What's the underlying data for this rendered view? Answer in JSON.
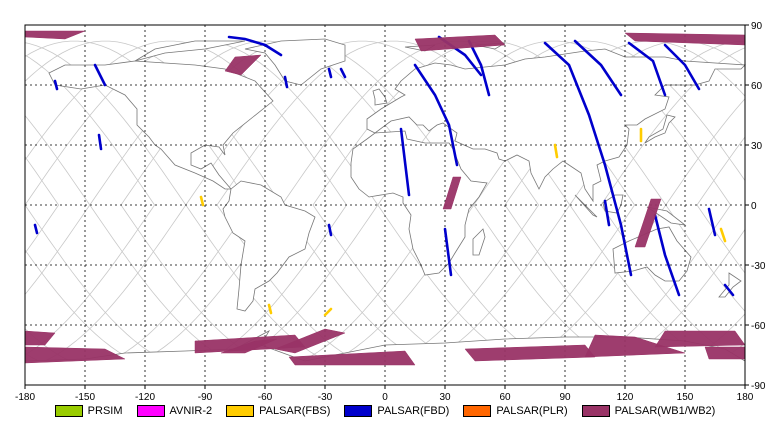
{
  "chart_data": {
    "type": "map",
    "projection": "equirectangular",
    "xlim": [
      -180,
      180
    ],
    "ylim": [
      -90,
      90
    ],
    "x_ticks": [
      "-180",
      "-150",
      "-120",
      "-90",
      "-60",
      "-30",
      "0",
      "30",
      "60",
      "90",
      "120",
      "150",
      "180"
    ],
    "y_ticks": [
      "90",
      "60",
      "30",
      "0",
      "-30",
      "-60",
      "-90"
    ],
    "grid": true,
    "legend_position": "bottom",
    "legend": [
      {
        "label": "PRSIM",
        "color": "#99cc00"
      },
      {
        "label": "AVNIR-2",
        "color": "#ff00ff"
      },
      {
        "label": "PALSAR(FBS)",
        "color": "#ffcc00"
      },
      {
        "label": "PALSAR(FBD)",
        "color": "#0000cc"
      },
      {
        "label": "PALSAR(PLR)",
        "color": "#ff6600"
      },
      {
        "label": "PALSAR(WB1/WB2)",
        "color": "#993366"
      }
    ],
    "series": [
      {
        "name": "PALSAR(FBD)",
        "color": "#0000cc",
        "type": "track",
        "points": [
          [
            -78,
            84
          ],
          [
            -70,
            83
          ],
          [
            -60,
            80
          ],
          [
            -52,
            75
          ]
        ]
      },
      {
        "name": "PALSAR(FBD)",
        "color": "#0000cc",
        "type": "track",
        "points": [
          [
            -145,
            70
          ],
          [
            -140,
            60
          ]
        ]
      },
      {
        "name": "PALSAR(FBD)",
        "color": "#0000cc",
        "type": "track",
        "points": [
          [
            -143,
            35
          ],
          [
            -142,
            28
          ]
        ]
      },
      {
        "name": "PALSAR(FBD)",
        "color": "#0000cc",
        "type": "track",
        "points": [
          [
            -165,
            62
          ],
          [
            -164,
            58
          ]
        ]
      },
      {
        "name": "PALSAR(FBD)",
        "color": "#0000cc",
        "type": "track",
        "points": [
          [
            -50,
            64
          ],
          [
            -49,
            59
          ]
        ]
      },
      {
        "name": "PALSAR(FBD)",
        "color": "#0000cc",
        "type": "track",
        "points": [
          [
            -22,
            68
          ],
          [
            -20,
            64
          ]
        ]
      },
      {
        "name": "PALSAR(FBD)",
        "color": "#0000cc",
        "type": "track",
        "points": [
          [
            -28,
            68
          ],
          [
            -27,
            64
          ]
        ]
      },
      {
        "name": "PALSAR(FBD)",
        "color": "#0000cc",
        "type": "track",
        "points": [
          [
            15,
            70
          ],
          [
            25,
            55
          ],
          [
            32,
            40
          ],
          [
            36,
            20
          ]
        ]
      },
      {
        "name": "PALSAR(FBD)",
        "color": "#0000cc",
        "type": "track",
        "points": [
          [
            8,
            38
          ],
          [
            12,
            5
          ]
        ]
      },
      {
        "name": "PALSAR(FBD)",
        "color": "#0000cc",
        "type": "track",
        "points": [
          [
            30,
            -12
          ],
          [
            33,
            -35
          ]
        ]
      },
      {
        "name": "PALSAR(FBD)",
        "color": "#0000cc",
        "type": "track",
        "points": [
          [
            42,
            82
          ],
          [
            48,
            70
          ],
          [
            52,
            55
          ]
        ]
      },
      {
        "name": "PALSAR(FBD)",
        "color": "#0000cc",
        "type": "track",
        "points": [
          [
            27,
            84
          ],
          [
            40,
            75
          ],
          [
            48,
            65
          ]
        ]
      },
      {
        "name": "PALSAR(FBD)",
        "color": "#0000cc",
        "type": "track",
        "points": [
          [
            80,
            81
          ],
          [
            92,
            70
          ],
          [
            102,
            45
          ],
          [
            110,
            20
          ],
          [
            118,
            -10
          ],
          [
            123,
            -35
          ]
        ]
      },
      {
        "name": "PALSAR(FBD)",
        "color": "#0000cc",
        "type": "track",
        "points": [
          [
            95,
            82
          ],
          [
            108,
            70
          ],
          [
            118,
            55
          ]
        ]
      },
      {
        "name": "PALSAR(FBD)",
        "color": "#0000cc",
        "type": "track",
        "points": [
          [
            122,
            81
          ],
          [
            134,
            72
          ],
          [
            140,
            55
          ]
        ]
      },
      {
        "name": "PALSAR(FBD)",
        "color": "#0000cc",
        "type": "track",
        "points": [
          [
            140,
            80
          ],
          [
            150,
            70
          ],
          [
            157,
            58
          ]
        ]
      },
      {
        "name": "PALSAR(FBD)",
        "color": "#0000cc",
        "type": "track",
        "points": [
          [
            135,
            -5
          ],
          [
            140,
            -25
          ],
          [
            147,
            -45
          ]
        ]
      },
      {
        "name": "PALSAR(FBD)",
        "color": "#0000cc",
        "type": "track",
        "points": [
          [
            110,
            2
          ],
          [
            112,
            -10
          ]
        ]
      },
      {
        "name": "PALSAR(FBD)",
        "color": "#0000cc",
        "type": "track",
        "points": [
          [
            162,
            -2
          ],
          [
            165,
            -15
          ]
        ]
      },
      {
        "name": "PALSAR(FBD)",
        "color": "#0000cc",
        "type": "track",
        "points": [
          [
            170,
            -40
          ],
          [
            174,
            -45
          ]
        ]
      },
      {
        "name": "PALSAR(FBD)",
        "color": "#0000cc",
        "type": "track",
        "points": [
          [
            -28,
            -10
          ],
          [
            -27,
            -15
          ]
        ]
      },
      {
        "name": "PALSAR(FBD)",
        "color": "#0000cc",
        "type": "track",
        "points": [
          [
            -175,
            -10
          ],
          [
            -174,
            -14
          ]
        ]
      },
      {
        "name": "PALSAR(FBS)",
        "color": "#ffcc00",
        "type": "track",
        "points": [
          [
            -92,
            4
          ],
          [
            -91,
            0
          ]
        ]
      },
      {
        "name": "PALSAR(FBS)",
        "color": "#ffcc00",
        "type": "track",
        "points": [
          [
            -58,
            -50
          ],
          [
            -57,
            -54
          ]
        ]
      },
      {
        "name": "PALSAR(FBS)",
        "color": "#ffcc00",
        "type": "track",
        "points": [
          [
            -30,
            -55
          ],
          [
            -27,
            -52
          ]
        ]
      },
      {
        "name": "PALSAR(FBS)",
        "color": "#ffcc00",
        "type": "track",
        "points": [
          [
            85,
            30
          ],
          [
            86,
            24
          ]
        ]
      },
      {
        "name": "PALSAR(FBS)",
        "color": "#ffcc00",
        "type": "track",
        "points": [
          [
            128,
            38
          ],
          [
            128,
            32
          ]
        ]
      },
      {
        "name": "PALSAR(FBS)",
        "color": "#ffcc00",
        "type": "track",
        "points": [
          [
            168,
            -12
          ],
          [
            170,
            -18
          ]
        ]
      },
      {
        "name": "PALSAR(WB1/WB2)",
        "color": "#993366",
        "type": "swath",
        "points": [
          [
            -180,
            -63
          ],
          [
            -165,
            -64
          ],
          [
            -170,
            -70
          ],
          [
            -180,
            -70
          ]
        ]
      },
      {
        "name": "PALSAR(WB1/WB2)",
        "color": "#993366",
        "type": "swath",
        "points": [
          [
            -180,
            -71
          ],
          [
            -140,
            -72
          ],
          [
            -130,
            -77
          ],
          [
            -180,
            -79
          ]
        ]
      },
      {
        "name": "PALSAR(WB1/WB2)",
        "color": "#993366",
        "type": "swath",
        "points": [
          [
            -95,
            -68
          ],
          [
            -45,
            -65
          ],
          [
            -40,
            -71
          ],
          [
            -95,
            -74
          ]
        ]
      },
      {
        "name": "PALSAR(WB1/WB2)",
        "color": "#993366",
        "type": "swath",
        "points": [
          [
            -30,
            -62
          ],
          [
            -20,
            -64
          ],
          [
            -45,
            -74
          ],
          [
            -55,
            -72
          ]
        ]
      },
      {
        "name": "PALSAR(WB1/WB2)",
        "color": "#993366",
        "type": "swath",
        "points": [
          [
            -48,
            -76
          ],
          [
            10,
            -73
          ],
          [
            15,
            -80
          ],
          [
            -45,
            -80
          ]
        ]
      },
      {
        "name": "PALSAR(WB1/WB2)",
        "color": "#993366",
        "type": "swath",
        "points": [
          [
            40,
            -72
          ],
          [
            100,
            -70
          ],
          [
            105,
            -76
          ],
          [
            45,
            -78
          ]
        ]
      },
      {
        "name": "PALSAR(WB1/WB2)",
        "color": "#993366",
        "type": "swath",
        "points": [
          [
            105,
            -65
          ],
          [
            125,
            -66
          ],
          [
            150,
            -74
          ],
          [
            100,
            -76
          ]
        ]
      },
      {
        "name": "PALSAR(WB1/WB2)",
        "color": "#993366",
        "type": "swath",
        "points": [
          [
            140,
            -63
          ],
          [
            175,
            -63
          ],
          [
            180,
            -70
          ],
          [
            135,
            -71
          ]
        ]
      },
      {
        "name": "PALSAR(WB1/WB2)",
        "color": "#993366",
        "type": "swath",
        "points": [
          [
            160,
            -71
          ],
          [
            180,
            -71
          ],
          [
            180,
            -77
          ],
          [
            162,
            -77
          ]
        ]
      },
      {
        "name": "PALSAR(WB1/WB2)",
        "color": "#993366",
        "type": "swath",
        "points": [
          [
            -75,
            74
          ],
          [
            -62,
            75
          ],
          [
            -72,
            65
          ],
          [
            -80,
            67
          ]
        ]
      },
      {
        "name": "PALSAR(WB1/WB2)",
        "color": "#993366",
        "type": "swath",
        "points": [
          [
            15,
            83
          ],
          [
            55,
            85
          ],
          [
            60,
            80
          ],
          [
            18,
            77
          ]
        ]
      },
      {
        "name": "PALSAR(WB1/WB2)",
        "color": "#993366",
        "type": "swath",
        "points": [
          [
            120,
            86
          ],
          [
            180,
            85
          ],
          [
            180,
            80
          ],
          [
            125,
            82
          ]
        ]
      },
      {
        "name": "PALSAR(WB1/WB2)",
        "color": "#993366",
        "type": "swath",
        "points": [
          [
            -180,
            87
          ],
          [
            -150,
            87
          ],
          [
            -160,
            83
          ],
          [
            -180,
            84
          ]
        ]
      },
      {
        "name": "PALSAR(WB1/WB2)",
        "color": "#993366",
        "type": "swath",
        "points": [
          [
            34,
            14
          ],
          [
            38,
            14
          ],
          [
            33,
            -2
          ],
          [
            29,
            -2
          ]
        ]
      },
      {
        "name": "PALSAR(WB1/WB2)",
        "color": "#993366",
        "type": "swath",
        "points": [
          [
            133,
            3
          ],
          [
            138,
            3
          ],
          [
            130,
            -21
          ],
          [
            125,
            -21
          ]
        ]
      },
      {
        "name": "PALSAR(WB1/WB2)",
        "color": "#993366",
        "type": "swath",
        "points": [
          [
            -65,
            -68
          ],
          [
            -54,
            -67
          ],
          [
            -70,
            -74
          ],
          [
            -82,
            -74
          ]
        ]
      }
    ]
  }
}
